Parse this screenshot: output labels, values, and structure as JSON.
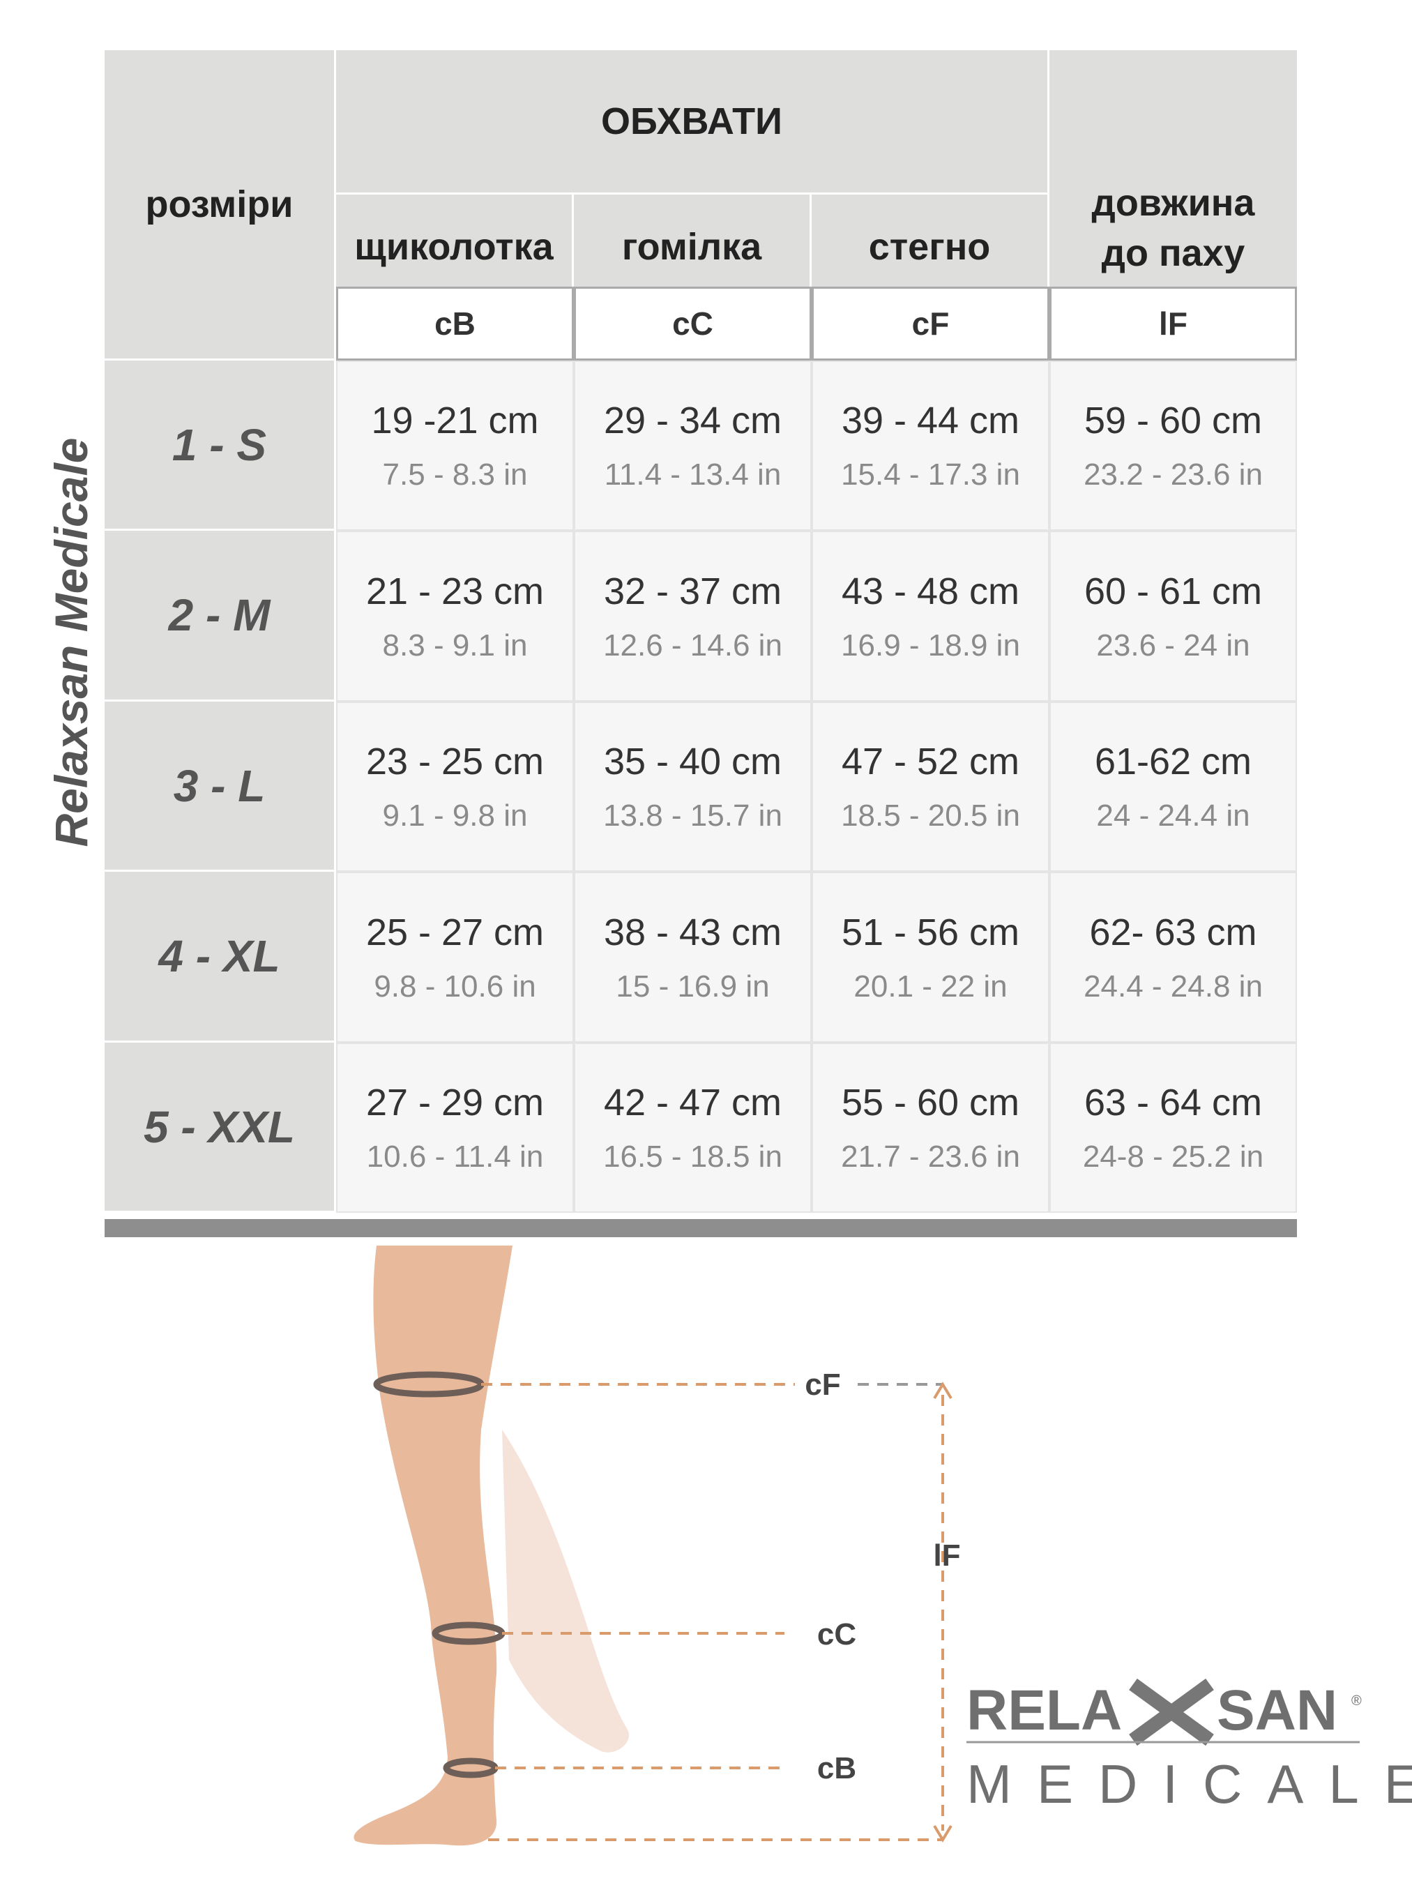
{
  "header": {
    "size_label": "розміри",
    "group": "ОБХВАТИ",
    "columns": [
      "щиколотка",
      "гомілка",
      "стегно"
    ],
    "length": [
      "довжина",
      "до паху"
    ],
    "codes": [
      "cB",
      "cC",
      "cF",
      "lF"
    ]
  },
  "side_text": "Relaxsan Medicale",
  "rows": [
    {
      "size": "1 - S",
      "cells": [
        [
          "19 -21 cm",
          "7.5 - 8.3 in"
        ],
        [
          "29 - 34 cm",
          "11.4 - 13.4 in"
        ],
        [
          "39 - 44 cm",
          "15.4 - 17.3 in"
        ],
        [
          "59 - 60 cm",
          "23.2 - 23.6 in"
        ]
      ]
    },
    {
      "size": "2 - M",
      "cells": [
        [
          "21 - 23 cm",
          "8.3 - 9.1 in"
        ],
        [
          "32 - 37 cm",
          "12.6 - 14.6 in"
        ],
        [
          "43 - 48 cm",
          "16.9 - 18.9 in"
        ],
        [
          "60 - 61 cm",
          "23.6 - 24 in"
        ]
      ]
    },
    {
      "size": "3 - L",
      "cells": [
        [
          "23 - 25 cm",
          "9.1 - 9.8 in"
        ],
        [
          "35 - 40 cm",
          "13.8 - 15.7 in"
        ],
        [
          "47 - 52 cm",
          "18.5 - 20.5 in"
        ],
        [
          "61-62 cm",
          "24 - 24.4 in"
        ]
      ]
    },
    {
      "size": "4 - XL",
      "cells": [
        [
          "25 - 27 cm",
          "9.8 - 10.6 in"
        ],
        [
          "38 - 43 cm",
          "15 - 16.9 in"
        ],
        [
          "51 - 56 cm",
          "20.1 - 22 in"
        ],
        [
          "62- 63 cm",
          "24.4 - 24.8 in"
        ]
      ]
    },
    {
      "size": "5 - XXL",
      "cells": [
        [
          "27 - 29 cm",
          "10.6 - 11.4 in"
        ],
        [
          "42 - 47 cm",
          "16.5 - 18.5 in"
        ],
        [
          "55 - 60 cm",
          "21.7 - 23.6 in"
        ],
        [
          "63 - 64 cm",
          "24-8 - 25.2 in"
        ]
      ]
    }
  ],
  "diagram": {
    "labels": [
      "cF",
      "lF",
      "cC",
      "cB"
    ]
  },
  "logo": {
    "left": "RELA",
    "right": "SAN",
    "mark": "®",
    "sub": "MEDICALE"
  }
}
